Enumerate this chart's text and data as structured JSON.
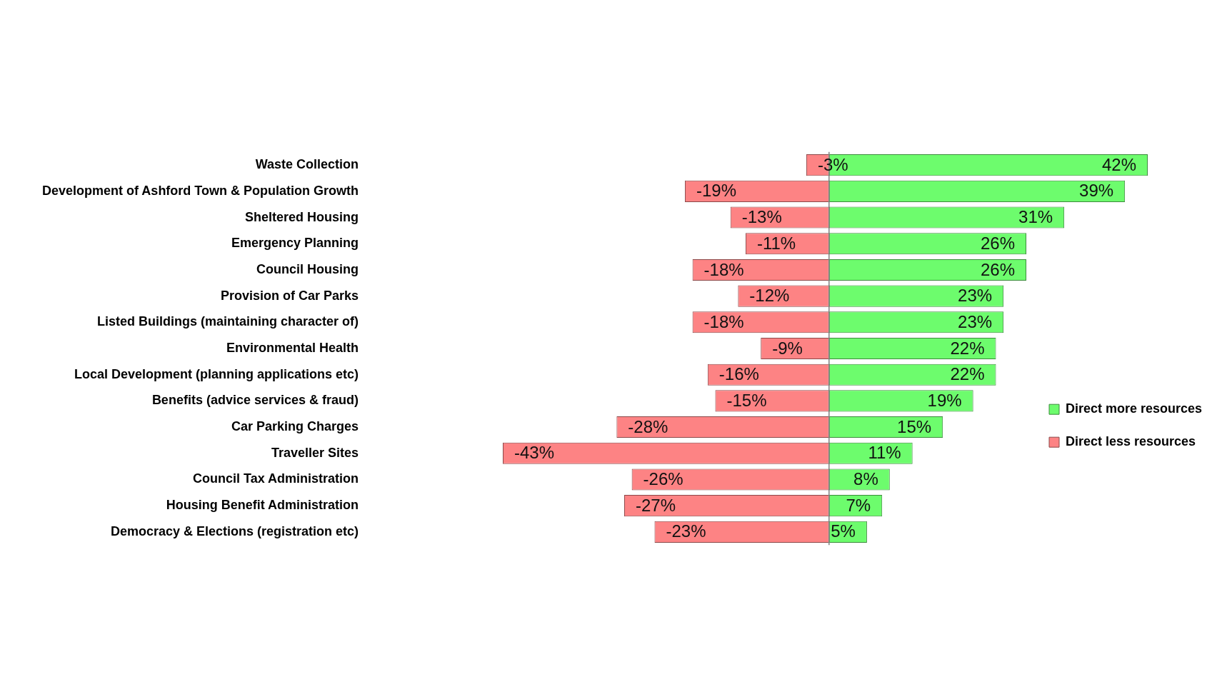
{
  "chart_data": {
    "type": "bar",
    "orientation": "horizontal",
    "stacked": true,
    "legend": "bottom right",
    "tick_labels": "y",
    "categories": [
      "Waste Collection",
      "Development of Ashford Town & Population Growth",
      "Sheltered Housing",
      "Emergency Planning",
      "Council Housing",
      "Provision of Car Parks",
      "Listed Buildings (maintaining character of)",
      "Environmental Health",
      "Local Development (planning applications etc)",
      "Benefits (advice services & fraud)",
      "Car Parking Charges",
      "Traveller Sites",
      "Council Tax Administration",
      "Housing Benefit Administration",
      "Democracy & Elections (registration etc)"
    ],
    "series": [
      {
        "name": "Direct more resources",
        "color": "#6dfc6d",
        "values": [
          42,
          39,
          31,
          26,
          26,
          23,
          23,
          22,
          22,
          19,
          15,
          11,
          8,
          7,
          5
        ],
        "value_labels": [
          "42%",
          "39%",
          "31%",
          "26%",
          "26%",
          "23%",
          "23%",
          "22%",
          "22%",
          "19%",
          "15%",
          "11%",
          "8%",
          "7%",
          "5%"
        ]
      },
      {
        "name": "Direct less resources",
        "color": "#fd8384",
        "values": [
          -3,
          -19,
          -13,
          -11,
          -18,
          -12,
          -18,
          -9,
          -16,
          -15,
          -28,
          -43,
          -26,
          -27,
          -23
        ],
        "value_labels": [
          "-3%",
          "-19%",
          "-13%",
          "-11%",
          "-18%",
          "-12%",
          "-18%",
          "-9%",
          "-16%",
          "-15%",
          "-28%",
          "-43%",
          "-26%",
          "-27%",
          "-23%"
        ]
      }
    ]
  }
}
